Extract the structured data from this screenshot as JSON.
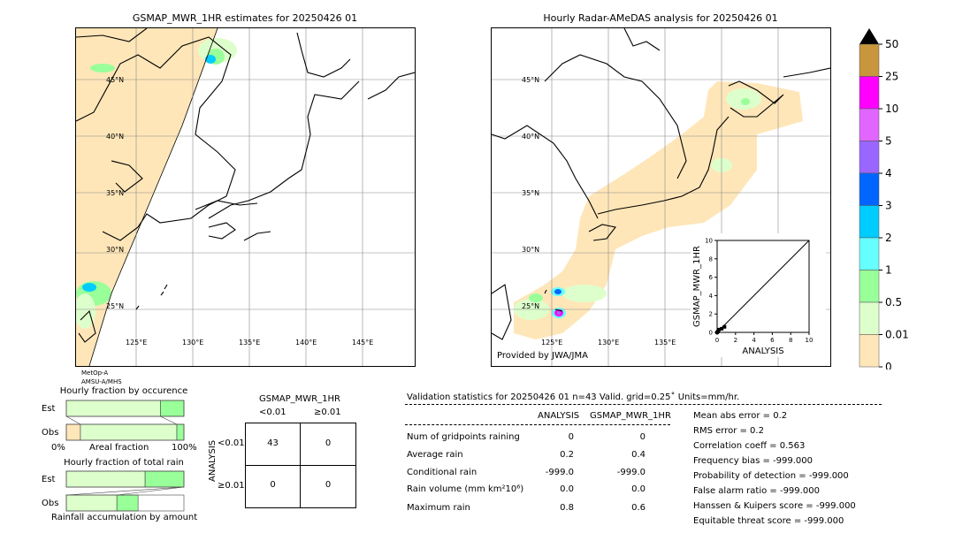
{
  "left_map": {
    "title": "GSMAP_MWR_1HR estimates for 20250426 01",
    "lat_labels": [
      "45°N",
      "40°N",
      "35°N",
      "30°N",
      "25°N"
    ],
    "lon_labels": [
      "125°E",
      "130°E",
      "135°E",
      "140°E",
      "145°E"
    ],
    "sensor_lines": [
      "MetOp-A",
      "AMSU-A/MHS"
    ]
  },
  "right_map": {
    "title": "Hourly Radar-AMeDAS analysis for 20250426 01",
    "lat_labels": [
      "45°N",
      "40°N",
      "35°N",
      "30°N",
      "25°N"
    ],
    "lon_labels": [
      "125°E",
      "130°E",
      "135°E"
    ],
    "credit": "Provided by JWA/JMA"
  },
  "colorbar": {
    "labels": [
      "50",
      "25",
      "10",
      "5",
      "4",
      "3",
      "2",
      "1",
      "0.5",
      "0.01",
      "0"
    ],
    "colors": [
      "#c8963c",
      "#ff00ff",
      "#e066ff",
      "#9966ff",
      "#0066ff",
      "#00ccff",
      "#66ffff",
      "#99ff99",
      "#ddffcc",
      "#ffe6b8"
    ],
    "over_color": "#000000"
  },
  "chart_data": [
    {
      "type": "scatter",
      "title": "",
      "xlabel": "ANALYSIS",
      "ylabel": "GSMAP_MWR_1HR",
      "xlim": [
        0,
        10
      ],
      "ylim": [
        0,
        10
      ],
      "xticks": [
        "0",
        "2",
        "4",
        "6",
        "8",
        "10"
      ],
      "yticks": [
        "0",
        "2",
        "4",
        "6",
        "8",
        "10"
      ],
      "points": [
        [
          0.0,
          0.0
        ],
        [
          0.1,
          0.1
        ],
        [
          0.2,
          0.3
        ],
        [
          0.5,
          0.4
        ],
        [
          0.8,
          0.6
        ]
      ],
      "reference_line": [
        [
          0,
          0
        ],
        [
          10,
          10
        ]
      ]
    },
    {
      "type": "bar",
      "title": "Hourly fraction by occurence",
      "categories": [
        "Est",
        "Obs"
      ],
      "series": [
        {
          "values": [
            0.0,
            0.0
          ]
        },
        {
          "values": [
            0.0,
            0.12
          ]
        },
        {
          "values": [
            0.8,
            0.82
          ]
        },
        {
          "values": [
            0.2,
            0.06
          ]
        }
      ],
      "segment_colors": [
        "#ffe6b8",
        "#ffe6b8",
        "#ddffcc",
        "#99ff99"
      ],
      "xlabel": "Areal fraction",
      "xtick_left": "0%",
      "xtick_right": "100%",
      "xlim": [
        0,
        1
      ]
    },
    {
      "type": "bar",
      "title": "Hourly fraction of total rain",
      "categories": [
        "Est",
        "Obs"
      ],
      "series": [
        {
          "values": [
            0.67,
            0.0
          ]
        },
        {
          "values": [
            0.33,
            0.0
          ]
        },
        {
          "values": [
            0.0,
            0.43
          ]
        },
        {
          "values": [
            0.0,
            0.18
          ]
        }
      ],
      "segment_colors": [
        "#ddffcc",
        "#99ff99",
        "#ddffcc",
        "#99ff99"
      ],
      "xlabel": "Rainfall accumulation by amount",
      "xlim": [
        0,
        1
      ]
    }
  ],
  "contingency": {
    "title": "GSMAP_MWR_1HR",
    "col_headers": [
      "<0.01",
      "≥0.01"
    ],
    "row_axis_label": "ANALYSIS",
    "row_headers": [
      "<0.01",
      "≥0.01"
    ],
    "cells": [
      [
        "43",
        "0"
      ],
      [
        "0",
        "0"
      ]
    ]
  },
  "validation": {
    "header": "Validation statistics for 20250426 01  n=43 Valid. grid=0.25˚ Units=mm/hr.",
    "col_analysis": "ANALYSIS",
    "col_gsmap": "GSMAP_MWR_1HR",
    "rows": [
      {
        "label": "Num of gridpoints raining",
        "a": "0",
        "g": "0"
      },
      {
        "label": "Average rain",
        "a": "0.2",
        "g": "0.4"
      },
      {
        "label": "Conditional rain",
        "a": "-999.0",
        "g": "-999.0"
      },
      {
        "label": "Rain volume (mm km²10⁶)",
        "a": "0.0",
        "g": "0.0"
      },
      {
        "label": "Maximum rain",
        "a": "0.8",
        "g": "0.6"
      }
    ],
    "scores": [
      "Mean abs error =    0.2",
      "RMS error =    0.2",
      "Correlation coeff =  0.563",
      "Frequency bias = -999.000",
      "Probability of detection = -999.000",
      "False alarm ratio = -999.000",
      "Hanssen & Kuipers score = -999.000",
      "Equitable threat score = -999.000"
    ]
  }
}
